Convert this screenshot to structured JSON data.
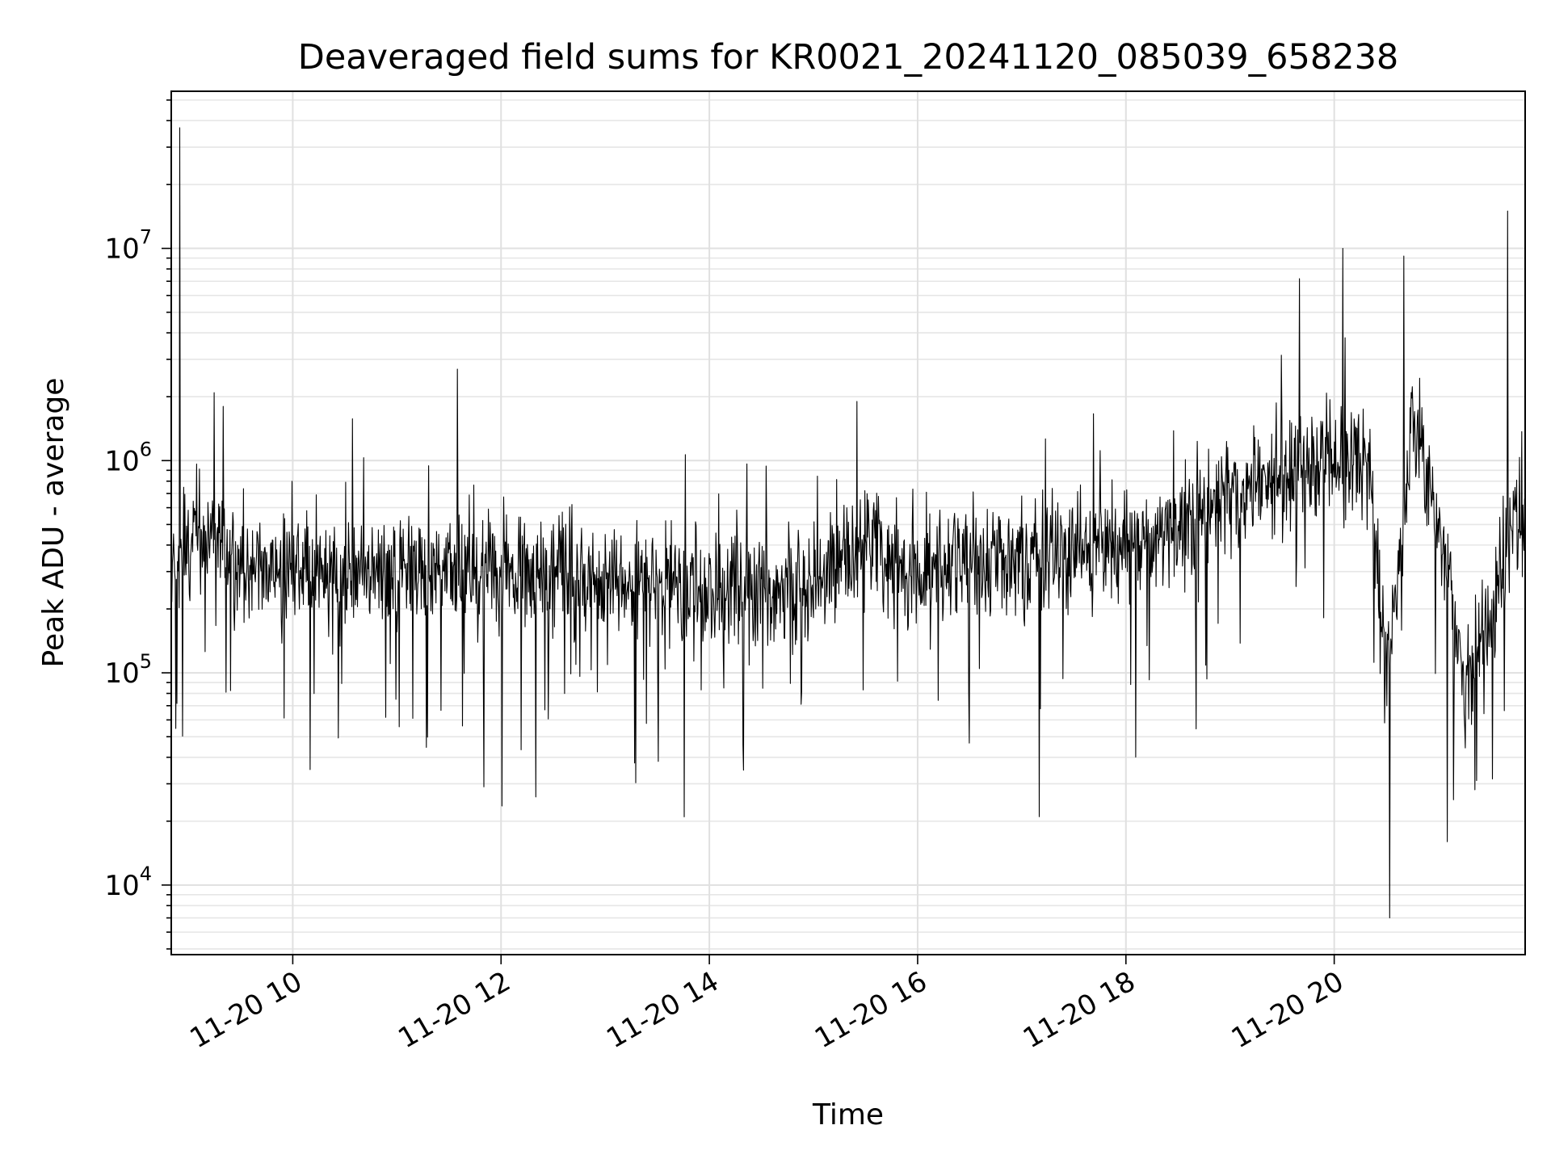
{
  "chart_data": {
    "type": "line",
    "title": "Deaveraged field sums for KR0021_20241120_085039_658238",
    "xlabel": "Time",
    "ylabel": "Peak ADU - average",
    "y_scale": "log",
    "grid": true,
    "line_color": "#000000",
    "xlim": [
      "2024-11-20T08:50",
      "2024-11-20T21:50"
    ],
    "ylim": [
      4700,
      55000000
    ],
    "x_ticks": [
      {
        "value": "2024-11-20T10:00",
        "label": "11-20 10"
      },
      {
        "value": "2024-11-20T12:00",
        "label": "11-20 12"
      },
      {
        "value": "2024-11-20T14:00",
        "label": "11-20 14"
      },
      {
        "value": "2024-11-20T16:00",
        "label": "11-20 16"
      },
      {
        "value": "2024-11-20T18:00",
        "label": "11-20 18"
      },
      {
        "value": "2024-11-20T20:00",
        "label": "11-20 20"
      }
    ],
    "y_ticks": [
      {
        "value": 10000,
        "base": "10",
        "exp": "4"
      },
      {
        "value": 100000,
        "base": "10",
        "exp": "5"
      },
      {
        "value": 1000000,
        "base": "10",
        "exp": "6"
      },
      {
        "value": 10000000,
        "base": "10",
        "exp": "7"
      }
    ],
    "series": [
      {
        "x": [
          "2024-11-20T08:50",
          "2024-11-20T09:00",
          "2024-11-20T09:15",
          "2024-11-20T09:30",
          "2024-11-20T10:00",
          "2024-11-20T10:30",
          "2024-11-20T11:00",
          "2024-11-20T11:30",
          "2024-11-20T12:00",
          "2024-11-20T12:30",
          "2024-11-20T13:00",
          "2024-11-20T13:30",
          "2024-11-20T14:00",
          "2024-11-20T14:30",
          "2024-11-20T15:00",
          "2024-11-20T15:30",
          "2024-11-20T16:00",
          "2024-11-20T16:30",
          "2024-11-20T17:00",
          "2024-11-20T17:30",
          "2024-11-20T18:00",
          "2024-11-20T18:30",
          "2024-11-20T19:00",
          "2024-11-20T19:30",
          "2024-11-20T20:00",
          "2024-11-20T20:20",
          "2024-11-20T20:30",
          "2024-11-20T20:45",
          "2024-11-20T21:00",
          "2024-11-20T21:15",
          "2024-11-20T21:30",
          "2024-11-20T21:50"
        ],
        "y": [
          350000,
          380000,
          420000,
          300000,
          310000,
          290000,
          300000,
          320000,
          280000,
          300000,
          270000,
          260000,
          240000,
          230000,
          250000,
          400000,
          280000,
          350000,
          330000,
          360000,
          400000,
          450000,
          700000,
          900000,
          1000000,
          1100000,
          90000,
          1500000,
          500000,
          90000,
          200000,
          700000
        ]
      }
    ],
    "peaks": [
      {
        "x": "2024-11-20T08:55",
        "y": 37000000
      },
      {
        "x": "2024-11-20T09:20",
        "y": 1800000
      },
      {
        "x": "2024-11-20T11:35",
        "y": 2700000
      },
      {
        "x": "2024-11-20T15:25",
        "y": 1900000
      },
      {
        "x": "2024-11-20T19:40",
        "y": 7200000
      },
      {
        "x": "2024-11-20T20:05",
        "y": 10000000
      },
      {
        "x": "2024-11-20T20:40",
        "y": 9200000
      },
      {
        "x": "2024-11-20T21:40",
        "y": 15000000
      }
    ],
    "troughs": [
      {
        "x": "2024-11-20T10:10",
        "y": 35000
      },
      {
        "x": "2024-11-20T11:50",
        "y": 29000
      },
      {
        "x": "2024-11-20T12:20",
        "y": 26000
      },
      {
        "x": "2024-11-20T17:10",
        "y": 21000
      },
      {
        "x": "2024-11-20T20:32",
        "y": 7000
      },
      {
        "x": "2024-11-20T21:05",
        "y": 16000
      }
    ]
  }
}
